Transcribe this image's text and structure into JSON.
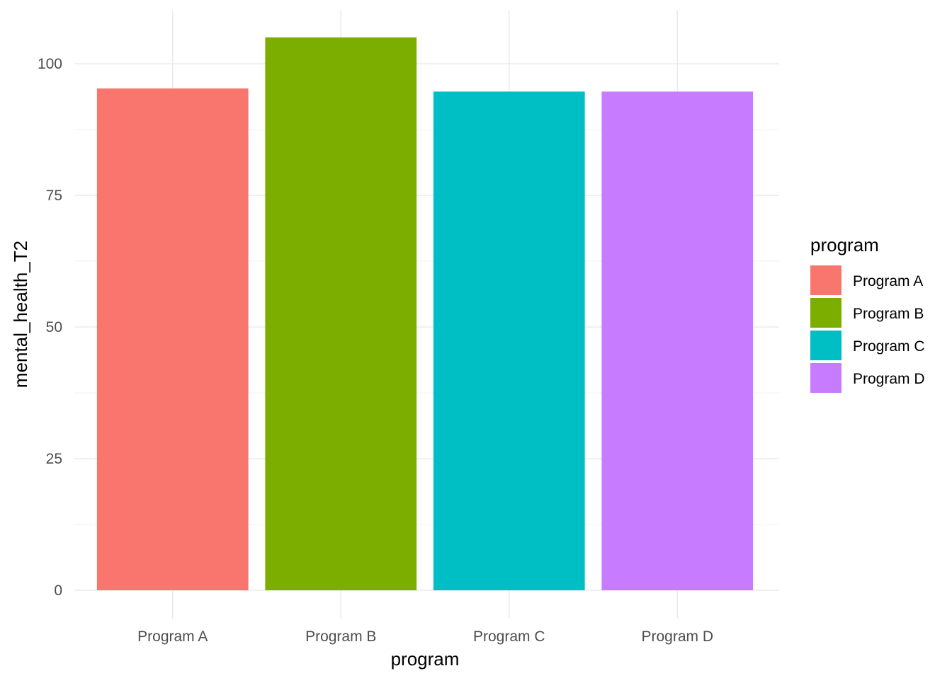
{
  "chart_data": {
    "type": "bar",
    "categories": [
      "Program A",
      "Program B",
      "Program C",
      "Program D"
    ],
    "values": [
      95.3,
      105.0,
      94.7,
      94.7
    ],
    "colors": [
      "#F8766D",
      "#7CAE00",
      "#00BFC4",
      "#C77CFF"
    ],
    "title": "",
    "xlabel": "program",
    "ylabel": "mental_health_T2",
    "ylim": [
      0,
      110
    ],
    "yticks": [
      0,
      25,
      50,
      75,
      100
    ],
    "grid": true,
    "legend": {
      "title": "program",
      "placement": "right",
      "items": [
        "Program A",
        "Program B",
        "Program C",
        "Program D"
      ]
    }
  }
}
